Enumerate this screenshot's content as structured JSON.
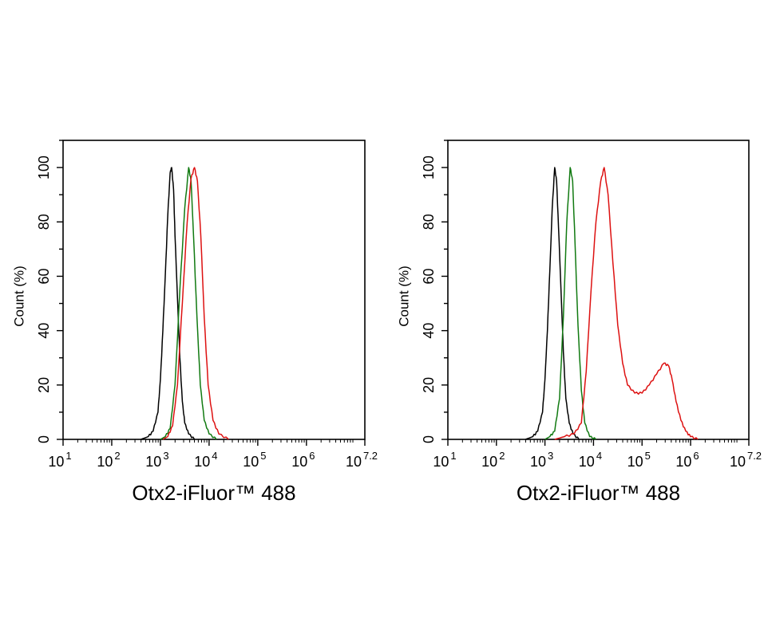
{
  "chart_data": [
    {
      "type": "line",
      "subtype": "histogram-overlay",
      "xscale": "log",
      "xlim": [
        1,
        7.2
      ],
      "ylim": [
        0,
        110
      ],
      "xlabel": "Otx2-iFluor™ 488",
      "ylabel": "Count  (%)",
      "xticks": [
        {
          "base": "10",
          "exp": "1"
        },
        {
          "base": "10",
          "exp": "2"
        },
        {
          "base": "10",
          "exp": "3"
        },
        {
          "base": "10",
          "exp": "4"
        },
        {
          "base": "10",
          "exp": "5"
        },
        {
          "base": "10",
          "exp": "6"
        },
        {
          "base": "10",
          "exp": "7.2"
        }
      ],
      "yticks": [
        "0",
        "20",
        "40",
        "60",
        "80",
        "100"
      ],
      "grid": false,
      "series": [
        {
          "color": "#000000",
          "points": [
            [
              2.6,
              0
            ],
            [
              2.75,
              1
            ],
            [
              2.85,
              3
            ],
            [
              2.95,
              10
            ],
            [
              3.0,
              22
            ],
            [
              3.05,
              40
            ],
            [
              3.1,
              60
            ],
            [
              3.15,
              82
            ],
            [
              3.2,
              98
            ],
            [
              3.23,
              100
            ],
            [
              3.27,
              92
            ],
            [
              3.3,
              75
            ],
            [
              3.35,
              52
            ],
            [
              3.4,
              30
            ],
            [
              3.45,
              14
            ],
            [
              3.5,
              6
            ],
            [
              3.58,
              2
            ],
            [
              3.7,
              0
            ]
          ]
        },
        {
          "color": "#117a11",
          "points": [
            [
              3.0,
              0
            ],
            [
              3.1,
              1
            ],
            [
              3.2,
              4
            ],
            [
              3.3,
              20
            ],
            [
              3.4,
              55
            ],
            [
              3.5,
              85
            ],
            [
              3.58,
              100
            ],
            [
              3.63,
              95
            ],
            [
              3.68,
              75
            ],
            [
              3.75,
              45
            ],
            [
              3.82,
              20
            ],
            [
              3.9,
              7
            ],
            [
              4.0,
              2
            ],
            [
              4.15,
              0
            ]
          ]
        },
        {
          "color": "#dd1111",
          "points": [
            [
              3.05,
              0
            ],
            [
              3.15,
              1
            ],
            [
              3.25,
              5
            ],
            [
              3.35,
              20
            ],
            [
              3.45,
              50
            ],
            [
              3.55,
              80
            ],
            [
              3.63,
              96
            ],
            [
              3.7,
              100
            ],
            [
              3.76,
              95
            ],
            [
              3.83,
              75
            ],
            [
              3.9,
              45
            ],
            [
              3.98,
              20
            ],
            [
              4.08,
              7
            ],
            [
              4.2,
              2
            ],
            [
              4.4,
              0
            ]
          ]
        }
      ]
    },
    {
      "type": "line",
      "subtype": "histogram-overlay",
      "xscale": "log",
      "xlim": [
        1,
        7.2
      ],
      "ylim": [
        0,
        110
      ],
      "xlabel": "Otx2-iFluor™ 488",
      "ylabel": "Count  (%)",
      "xticks": [
        {
          "base": "10",
          "exp": "1"
        },
        {
          "base": "10",
          "exp": "2"
        },
        {
          "base": "10",
          "exp": "3"
        },
        {
          "base": "10",
          "exp": "4"
        },
        {
          "base": "10",
          "exp": "5"
        },
        {
          "base": "10",
          "exp": "6"
        },
        {
          "base": "10",
          "exp": "7.2"
        }
      ],
      "yticks": [
        "0",
        "20",
        "40",
        "60",
        "80",
        "100"
      ],
      "grid": false,
      "series": [
        {
          "color": "#000000",
          "points": [
            [
              2.6,
              0
            ],
            [
              2.75,
              1
            ],
            [
              2.85,
              3
            ],
            [
              2.95,
              10
            ],
            [
              3.0,
              22
            ],
            [
              3.05,
              40
            ],
            [
              3.1,
              62
            ],
            [
              3.15,
              85
            ],
            [
              3.2,
              100
            ],
            [
              3.24,
              95
            ],
            [
              3.28,
              78
            ],
            [
              3.33,
              55
            ],
            [
              3.38,
              32
            ],
            [
              3.43,
              15
            ],
            [
              3.5,
              6
            ],
            [
              3.58,
              2
            ],
            [
              3.7,
              0
            ]
          ]
        },
        {
          "color": "#117a11",
          "points": [
            [
              3.0,
              0
            ],
            [
              3.1,
              1
            ],
            [
              3.2,
              3
            ],
            [
              3.3,
              15
            ],
            [
              3.38,
              45
            ],
            [
              3.45,
              80
            ],
            [
              3.52,
              100
            ],
            [
              3.57,
              95
            ],
            [
              3.62,
              72
            ],
            [
              3.68,
              42
            ],
            [
              3.75,
              18
            ],
            [
              3.82,
              6
            ],
            [
              3.92,
              1
            ],
            [
              4.05,
              0
            ]
          ]
        },
        {
          "color": "#dd1111",
          "points": [
            [
              3.2,
              0
            ],
            [
              3.4,
              1
            ],
            [
              3.6,
              2
            ],
            [
              3.75,
              6
            ],
            [
              3.85,
              25
            ],
            [
              3.95,
              55
            ],
            [
              4.05,
              80
            ],
            [
              4.15,
              95
            ],
            [
              4.22,
              100
            ],
            [
              4.3,
              90
            ],
            [
              4.4,
              65
            ],
            [
              4.5,
              42
            ],
            [
              4.6,
              28
            ],
            [
              4.7,
              20
            ],
            [
              4.85,
              17
            ],
            [
              5.0,
              17
            ],
            [
              5.15,
              20
            ],
            [
              5.3,
              24
            ],
            [
              5.45,
              28
            ],
            [
              5.55,
              27
            ],
            [
              5.62,
              22
            ],
            [
              5.7,
              14
            ],
            [
              5.8,
              7
            ],
            [
              5.9,
              3
            ],
            [
              6.0,
              1
            ],
            [
              6.15,
              0
            ]
          ]
        }
      ]
    }
  ]
}
